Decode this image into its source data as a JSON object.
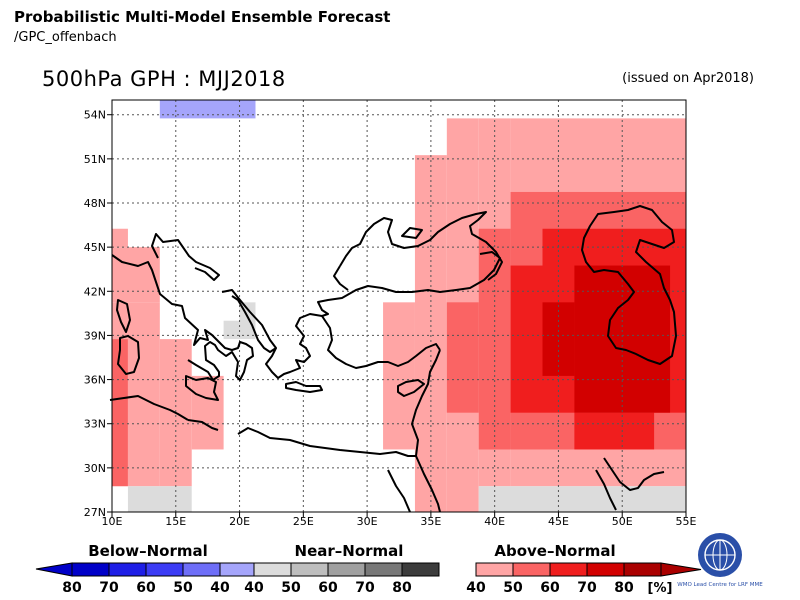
{
  "header": {
    "title": "Probabilistic Multi-Model Ensemble Forecast",
    "subtitle": "/GPC_offenbach",
    "map_title": "500hPa GPH : MJJ2018",
    "issued": "(issued on Apr2018)"
  },
  "map": {
    "lat_labels": [
      "54N",
      "51N",
      "48N",
      "45N",
      "42N",
      "39N",
      "36N",
      "33N",
      "30N",
      "27N"
    ],
    "lon_labels": [
      "10E",
      "15E",
      "20E",
      "25E",
      "30E",
      "35E",
      "40E",
      "45E",
      "50E",
      "55E"
    ],
    "lon_range": [
      10,
      55
    ],
    "lat_range": [
      27,
      55
    ],
    "cells": [
      {
        "lon": [
          10,
          11.25
        ],
        "lat": [
          45,
          46.25
        ],
        "cat": "above",
        "level": 40
      },
      {
        "lon": [
          10,
          13.75
        ],
        "lat": [
          41.25,
          45
        ],
        "cat": "above",
        "level": 40
      },
      {
        "lon": [
          10,
          11.25
        ],
        "lat": [
          38.75,
          41.25
        ],
        "cat": "above",
        "level": 40
      },
      {
        "lon": [
          10,
          11.25
        ],
        "lat": [
          28.75,
          38.75
        ],
        "cat": "above",
        "level": 50
      },
      {
        "lon": [
          11.25,
          13.75
        ],
        "lat": [
          28.75,
          41.25
        ],
        "cat": "above",
        "level": 40
      },
      {
        "lon": [
          13.75,
          16.25
        ],
        "lat": [
          28.75,
          38.75
        ],
        "cat": "above",
        "level": 40
      },
      {
        "lon": [
          16.25,
          18.75
        ],
        "lat": [
          31.25,
          36.25
        ],
        "cat": "above",
        "level": 40
      },
      {
        "lon": [
          11.25,
          16.25
        ],
        "lat": [
          27,
          28.75
        ],
        "cat": "near",
        "level": 40
      },
      {
        "lon": [
          18.75,
          20
        ],
        "lat": [
          38.75,
          40
        ],
        "cat": "near",
        "level": 40
      },
      {
        "lon": [
          20,
          21.25
        ],
        "lat": [
          38.75,
          41.25
        ],
        "cat": "near",
        "level": 40
      },
      {
        "lon": [
          13.75,
          21.25
        ],
        "lat": [
          53.75,
          55
        ],
        "cat": "below",
        "level": 40
      },
      {
        "lon": [
          31.25,
          33.75
        ],
        "lat": [
          31.25,
          41.25
        ],
        "cat": "above",
        "level": 40
      },
      {
        "lon": [
          33.75,
          36.25
        ],
        "lat": [
          27,
          51.25
        ],
        "cat": "above",
        "level": 40
      },
      {
        "lon": [
          36.25,
          38.75
        ],
        "lat": [
          27,
          53.75
        ],
        "cat": "above",
        "level": 40
      },
      {
        "lon": [
          38.75,
          41.25
        ],
        "lat": [
          28.75,
          53.75
        ],
        "cat": "above",
        "level": 40
      },
      {
        "lon": [
          41.25,
          55
        ],
        "lat": [
          28.75,
          53.75
        ],
        "cat": "above",
        "level": 40
      },
      {
        "lon": [
          36.25,
          38.75
        ],
        "lat": [
          33.75,
          41.25
        ],
        "cat": "above",
        "level": 50
      },
      {
        "lon": [
          38.75,
          41.25
        ],
        "lat": [
          31.25,
          46.25
        ],
        "cat": "above",
        "level": 50
      },
      {
        "lon": [
          41.25,
          43.75
        ],
        "lat": [
          31.25,
          48.75
        ],
        "cat": "above",
        "level": 50
      },
      {
        "lon": [
          43.75,
          55
        ],
        "lat": [
          31.25,
          48.75
        ],
        "cat": "above",
        "level": 50
      },
      {
        "lon": [
          41.25,
          43.75
        ],
        "lat": [
          33.75,
          43.75
        ],
        "cat": "above",
        "level": 60
      },
      {
        "lon": [
          43.75,
          55
        ],
        "lat": [
          33.75,
          46.25
        ],
        "cat": "above",
        "level": 60
      },
      {
        "lon": [
          46.25,
          52.5
        ],
        "lat": [
          31.25,
          33.75
        ],
        "cat": "above",
        "level": 60
      },
      {
        "lon": [
          43.75,
          46.25
        ],
        "lat": [
          36.25,
          41.25
        ],
        "cat": "above",
        "level": 70
      },
      {
        "lon": [
          46.25,
          53.75
        ],
        "lat": [
          33.75,
          43.75
        ],
        "cat": "above",
        "level": 70
      },
      {
        "lon": [
          38.75,
          55
        ],
        "lat": [
          27,
          28.75
        ],
        "cat": "near",
        "level": 40
      }
    ]
  },
  "legend": {
    "below": {
      "title": "Below–Normal",
      "ticks": [
        "80",
        "70",
        "60",
        "50",
        "40"
      ],
      "colors": [
        "#0000c8",
        "#1e1ee6",
        "#3c3cf5",
        "#6e6ef8",
        "#a5a5fb"
      ]
    },
    "near": {
      "title": "Near–Normal",
      "ticks": [
        "40",
        "50",
        "60",
        "70",
        "80"
      ],
      "colors": [
        "#dcdcdc",
        "#bebebe",
        "#a0a0a0",
        "#787878",
        "#3c3c3c"
      ]
    },
    "above": {
      "title": "Above–Normal",
      "ticks": [
        "40",
        "50",
        "60",
        "70",
        "80"
      ],
      "colors": [
        "#ffa5a5",
        "#fa6464",
        "#f01e1e",
        "#d20000",
        "#aa0000"
      ]
    },
    "unit": "[%]"
  },
  "logo": {
    "label": "WMO Lead Centre for LRF MME"
  }
}
